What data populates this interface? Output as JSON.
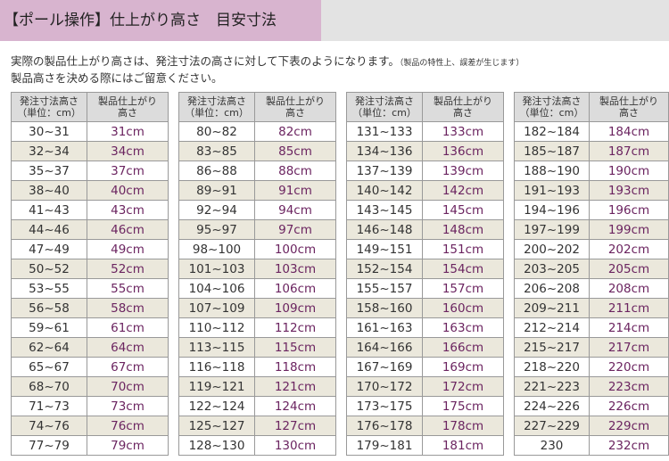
{
  "header": {
    "title": "【ポール操作】仕上がり高さ　目安寸法"
  },
  "intro": {
    "line1": "実際の製品仕上がり高さは、発注寸法の高さに対して下表のようになります。",
    "note": "（製品の特性上、誤差が生じます）",
    "line2": "製品高さを決める際にはご留意ください。"
  },
  "tables": [
    {
      "header": [
        "発注寸法高さ\n（単位：cm）",
        "製品仕上がり\n高さ"
      ],
      "rows": [
        [
          "30~31",
          "31cm"
        ],
        [
          "32~34",
          "34cm"
        ],
        [
          "35~37",
          "37cm"
        ],
        [
          "38~40",
          "40cm"
        ],
        [
          "41~43",
          "43cm"
        ],
        [
          "44~46",
          "46cm"
        ],
        [
          "47~49",
          "49cm"
        ],
        [
          "50~52",
          "52cm"
        ],
        [
          "53~55",
          "55cm"
        ],
        [
          "56~58",
          "58cm"
        ],
        [
          "59~61",
          "61cm"
        ],
        [
          "62~64",
          "64cm"
        ],
        [
          "65~67",
          "67cm"
        ],
        [
          "68~70",
          "70cm"
        ],
        [
          "71~73",
          "73cm"
        ],
        [
          "74~76",
          "76cm"
        ],
        [
          "77~79",
          "79cm"
        ]
      ]
    },
    {
      "header": [
        "発注寸法高さ\n（単位：cm）",
        "製品仕上がり\n高さ"
      ],
      "rows": [
        [
          "80~82",
          "82cm"
        ],
        [
          "83~85",
          "85cm"
        ],
        [
          "86~88",
          "88cm"
        ],
        [
          "89~91",
          "91cm"
        ],
        [
          "92~94",
          "94cm"
        ],
        [
          "95~97",
          "97cm"
        ],
        [
          "98~100",
          "100cm"
        ],
        [
          "101~103",
          "103cm"
        ],
        [
          "104~106",
          "106cm"
        ],
        [
          "107~109",
          "109cm"
        ],
        [
          "110~112",
          "112cm"
        ],
        [
          "113~115",
          "115cm"
        ],
        [
          "116~118",
          "118cm"
        ],
        [
          "119~121",
          "121cm"
        ],
        [
          "122~124",
          "124cm"
        ],
        [
          "125~127",
          "127cm"
        ],
        [
          "128~130",
          "130cm"
        ]
      ]
    },
    {
      "header": [
        "発注寸法高さ\n（単位：cm）",
        "製品仕上がり\n高さ"
      ],
      "rows": [
        [
          "131~133",
          "133cm"
        ],
        [
          "134~136",
          "136cm"
        ],
        [
          "137~139",
          "139cm"
        ],
        [
          "140~142",
          "142cm"
        ],
        [
          "143~145",
          "145cm"
        ],
        [
          "146~148",
          "148cm"
        ],
        [
          "149~151",
          "151cm"
        ],
        [
          "152~154",
          "154cm"
        ],
        [
          "155~157",
          "157cm"
        ],
        [
          "158~160",
          "160cm"
        ],
        [
          "161~163",
          "163cm"
        ],
        [
          "164~166",
          "166cm"
        ],
        [
          "167~169",
          "169cm"
        ],
        [
          "170~172",
          "172cm"
        ],
        [
          "173~175",
          "175cm"
        ],
        [
          "176~178",
          "178cm"
        ],
        [
          "179~181",
          "181cm"
        ]
      ]
    },
    {
      "header": [
        "発注寸法高さ\n（単位：cm）",
        "製品仕上がり\n高さ"
      ],
      "rows": [
        [
          "182~184",
          "184cm"
        ],
        [
          "185~187",
          "187cm"
        ],
        [
          "188~190",
          "190cm"
        ],
        [
          "191~193",
          "193cm"
        ],
        [
          "194~196",
          "196cm"
        ],
        [
          "197~199",
          "199cm"
        ],
        [
          "200~202",
          "202cm"
        ],
        [
          "203~205",
          "205cm"
        ],
        [
          "206~208",
          "208cm"
        ],
        [
          "209~211",
          "211cm"
        ],
        [
          "212~214",
          "214cm"
        ],
        [
          "215~217",
          "217cm"
        ],
        [
          "218~220",
          "220cm"
        ],
        [
          "221~223",
          "223cm"
        ],
        [
          "224~226",
          "226cm"
        ],
        [
          "227~229",
          "229cm"
        ],
        [
          "230",
          "232cm"
        ]
      ]
    }
  ]
}
